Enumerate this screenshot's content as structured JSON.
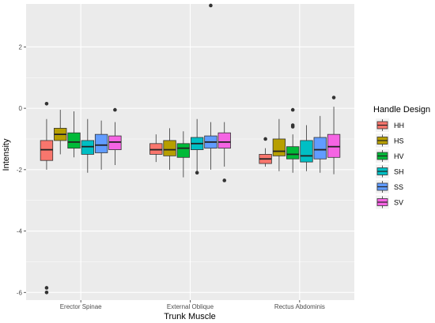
{
  "chart_data": {
    "type": "boxplot",
    "xlabel": "Trunk Muscle",
    "ylabel": "Intensity",
    "ylim": [
      -6.25,
      3.4
    ],
    "y_ticks": [
      2,
      0,
      -2,
      -4,
      -6
    ],
    "grid": true,
    "legend": {
      "title": "Handle Design",
      "placement": "right"
    },
    "categories": [
      "Erector Spinae",
      "External Oblique",
      "Rectus Abdominis"
    ],
    "series": [
      {
        "name": "HH",
        "color": "#F8766D",
        "values": [
          {
            "q1": -1.7,
            "median": -1.35,
            "q3": -1.05,
            "whisker_low": -2.0,
            "whisker_high": -0.35,
            "outliers": [
              0.15,
              -5.85,
              -6.0
            ]
          },
          {
            "q1": -1.5,
            "median": -1.35,
            "q3": -1.15,
            "whisker_low": -1.75,
            "whisker_high": -0.85,
            "outliers": []
          },
          {
            "q1": -1.8,
            "median": -1.65,
            "q3": -1.5,
            "whisker_low": -1.9,
            "whisker_high": -1.3,
            "outliers": [
              -1.0
            ]
          }
        ]
      },
      {
        "name": "HS",
        "color": "#B79F00",
        "values": [
          {
            "q1": -1.05,
            "median": -0.85,
            "q3": -0.65,
            "whisker_low": -1.5,
            "whisker_high": -0.05,
            "outliers": []
          },
          {
            "q1": -1.55,
            "median": -1.35,
            "q3": -1.05,
            "whisker_low": -2.0,
            "whisker_high": -0.65,
            "outliers": []
          },
          {
            "q1": -1.55,
            "median": -1.4,
            "q3": -1.0,
            "whisker_low": -2.05,
            "whisker_high": -0.35,
            "outliers": []
          }
        ]
      },
      {
        "name": "HV",
        "color": "#00BA38",
        "values": [
          {
            "q1": -1.3,
            "median": -1.1,
            "q3": -0.8,
            "whisker_low": -1.6,
            "whisker_high": -0.1,
            "outliers": []
          },
          {
            "q1": -1.6,
            "median": -1.3,
            "q3": -1.15,
            "whisker_low": -2.25,
            "whisker_high": -0.75,
            "outliers": []
          },
          {
            "q1": -1.65,
            "median": -1.5,
            "q3": -1.25,
            "whisker_low": -2.1,
            "whisker_high": -0.85,
            "outliers": [
              -0.05,
              -0.55,
              -0.6
            ]
          }
        ]
      },
      {
        "name": "SH",
        "color": "#00BFC4",
        "values": [
          {
            "q1": -1.5,
            "median": -1.25,
            "q3": -1.05,
            "whisker_low": -2.1,
            "whisker_high": -0.35,
            "outliers": []
          },
          {
            "q1": -1.35,
            "median": -1.15,
            "q3": -0.95,
            "whisker_low": -2.05,
            "whisker_high": -0.35,
            "outliers": [
              -2.1
            ]
          },
          {
            "q1": -1.75,
            "median": -1.55,
            "q3": -1.05,
            "whisker_low": -2.05,
            "whisker_high": -0.55,
            "outliers": []
          }
        ]
      },
      {
        "name": "SS",
        "color": "#619CFF",
        "values": [
          {
            "q1": -1.45,
            "median": -1.2,
            "q3": -0.85,
            "whisker_low": -2.0,
            "whisker_high": -0.4,
            "outliers": []
          },
          {
            "q1": -1.3,
            "median": -1.1,
            "q3": -0.9,
            "whisker_low": -2.0,
            "whisker_high": -0.45,
            "outliers": [
              3.35
            ]
          },
          {
            "q1": -1.65,
            "median": -1.35,
            "q3": -0.95,
            "whisker_low": -2.1,
            "whisker_high": -0.25,
            "outliers": []
          }
        ]
      },
      {
        "name": "SV",
        "color": "#F564E3",
        "values": [
          {
            "q1": -1.35,
            "median": -1.1,
            "q3": -0.9,
            "whisker_low": -1.85,
            "whisker_high": -0.45,
            "outliers": [
              -0.05
            ]
          },
          {
            "q1": -1.3,
            "median": -1.1,
            "q3": -0.8,
            "whisker_low": -1.9,
            "whisker_high": -0.45,
            "outliers": [
              -2.35
            ]
          },
          {
            "q1": -1.6,
            "median": -1.25,
            "q3": -0.85,
            "whisker_low": -2.15,
            "whisker_high": 0.05,
            "outliers": [
              0.35
            ]
          }
        ]
      }
    ]
  }
}
